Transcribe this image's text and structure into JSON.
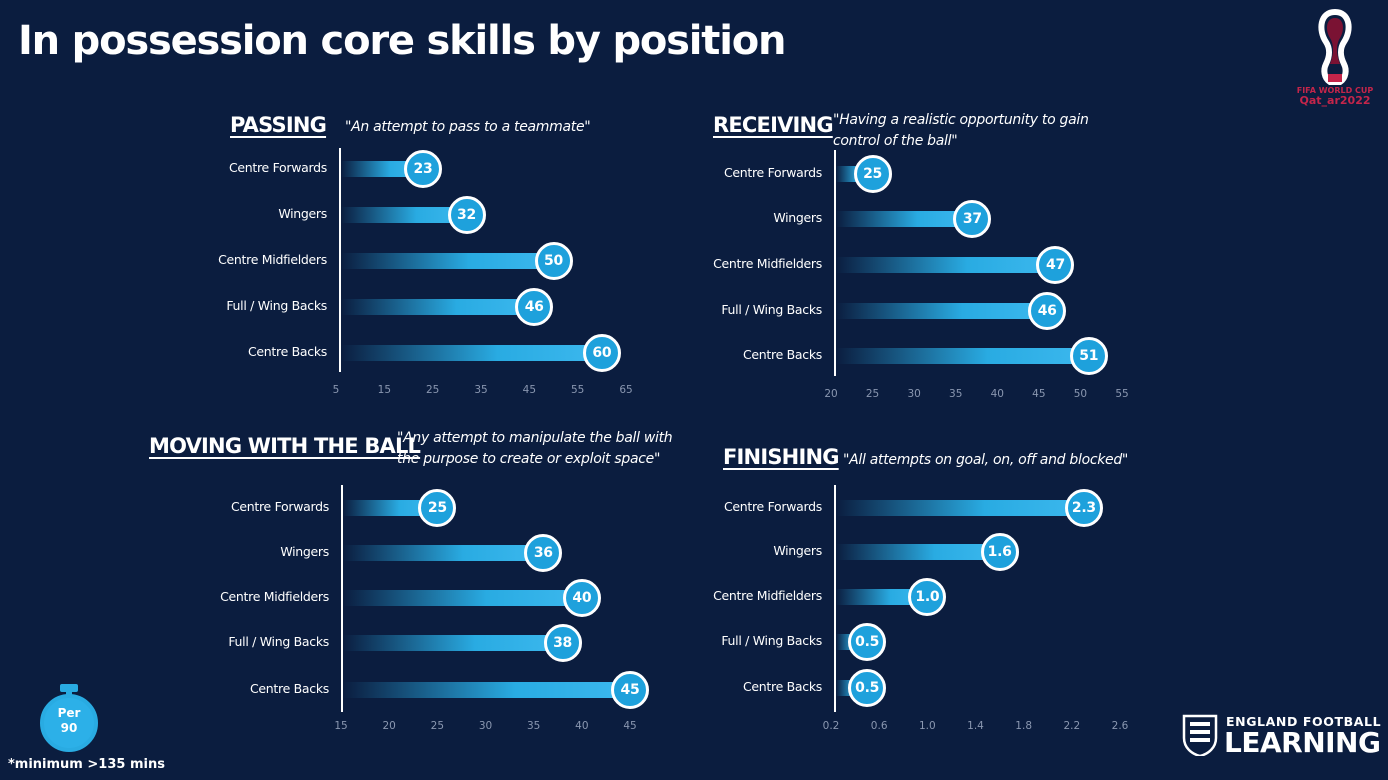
{
  "title": "In possession core skills by position",
  "footnote": "*minimum >135 mins",
  "per90_badge": {
    "line1": "Per",
    "line2": "90"
  },
  "brand_fifa": {
    "line1": "FIFA WORLD CUP",
    "line2": "Qat_ar2022"
  },
  "brand_efl": {
    "line1": "ENGLAND FOOTBALL",
    "line2": "LEARNING"
  },
  "colors": {
    "background": "#0b1d3f",
    "bar": "#29abe2",
    "bubble": "#1ea1dc"
  },
  "chart_data": [
    {
      "type": "bar",
      "title": "PASSING",
      "subtitle": "\"An attempt to pass to a teammate\"",
      "categories": [
        "Centre Forwards",
        "Wingers",
        "Centre Midfielders",
        "Full / Wing Backs",
        "Centre Backs"
      ],
      "values": [
        23,
        32,
        50,
        46,
        60
      ],
      "value_labels": [
        "23",
        "32",
        "50",
        "46",
        "60"
      ],
      "xlim": [
        5,
        65
      ],
      "ticks": [
        "5",
        "15",
        "25",
        "35",
        "45",
        "55",
        "65"
      ]
    },
    {
      "type": "bar",
      "title": "RECEIVING",
      "subtitle": "\"Having a realistic opportunity to gain\ncontrol of the ball\"",
      "categories": [
        "Centre Forwards",
        "Wingers",
        "Centre Midfielders",
        "Full / Wing Backs",
        "Centre Backs"
      ],
      "values": [
        25,
        37,
        47,
        46,
        51
      ],
      "value_labels": [
        "25",
        "37",
        "47",
        "46",
        "51"
      ],
      "xlim": [
        20,
        55
      ],
      "ticks": [
        "20",
        "25",
        "30",
        "35",
        "40",
        "45",
        "50",
        "55"
      ]
    },
    {
      "type": "bar",
      "title": "MOVING WITH THE BALL",
      "subtitle": "\"Any attempt to manipulate the ball with\nthe purpose to create or exploit space\"",
      "categories": [
        "Centre Forwards",
        "Wingers",
        "Centre Midfielders",
        "Full / Wing Backs",
        "Centre Backs"
      ],
      "values": [
        25,
        36,
        40,
        38,
        45
      ],
      "value_labels": [
        "25",
        "36",
        "40",
        "38",
        "45"
      ],
      "xlim": [
        15,
        45
      ],
      "ticks": [
        "15",
        "20",
        "25",
        "30",
        "35",
        "40",
        "45"
      ]
    },
    {
      "type": "bar",
      "title": "FINISHING",
      "subtitle": "\"All attempts on goal, on, off and blocked\"",
      "categories": [
        "Centre Forwards",
        "Wingers",
        "Centre Midfielders",
        "Full / Wing Backs",
        "Centre Backs"
      ],
      "values": [
        2.3,
        1.6,
        1.0,
        0.5,
        0.5
      ],
      "value_labels": [
        "2.3",
        "1.6",
        "1.0",
        "0.5",
        "0.5"
      ],
      "xlim": [
        0.2,
        2.6
      ],
      "ticks": [
        "0.2",
        "0.6",
        "1.0",
        "1.4",
        "1.8",
        "2.2",
        "2.6"
      ]
    }
  ]
}
